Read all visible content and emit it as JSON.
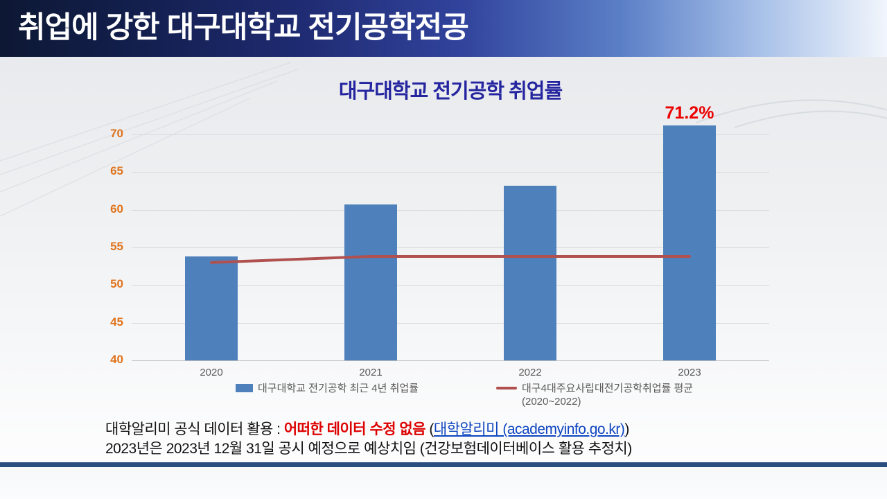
{
  "header": {
    "title": "취업에 강한 대구대학교 전기공학전공"
  },
  "chart_data": {
    "type": "bar",
    "title": "대구대학교 전기공학 취업률",
    "categories": [
      "2020",
      "2021",
      "2022",
      "2023"
    ],
    "series": [
      {
        "name": "대구대학교 전기공학 최근 4년 취업률",
        "type": "bar",
        "color": "#4e81bc",
        "values": [
          53.8,
          60.7,
          63.2,
          71.2
        ]
      },
      {
        "name": "대구4대주요사립대전기공학취업률 평균 (2020~2022)",
        "type": "line",
        "color": "#b05150",
        "values": [
          53.0,
          53.8,
          53.8,
          53.8
        ]
      }
    ],
    "ylim": [
      40,
      70
    ],
    "yticks": [
      40,
      45,
      50,
      55,
      60,
      65,
      70
    ],
    "grid": true,
    "legend_position": "bottom",
    "data_label": {
      "series": 0,
      "index": 3,
      "text": "71.2%",
      "color": "#ec0000"
    },
    "ytick_color": "#e0731c",
    "gridline_color": "#d9d9d9"
  },
  "legend": {
    "bar_label": "대구대학교 전기공학 최근 4년 취업률",
    "line_label": "대구4대주요사립대전기공학취업률 평균",
    "line_sublabel": "(2020~2022)"
  },
  "footnote": {
    "line1_prefix": "대학알리미 공식 데이터 활용 : ",
    "line1_red": "어떠한 데이터 수정 없음",
    "line1_mid": " (",
    "line1_link": "대학알리미 (academyinfo.go.kr)",
    "line1_suffix": ")",
    "line2": "2023년은 2023년 12월 31일 공시 예정으로 예상치임 (건강보험데이터베이스 활용 추정치)"
  },
  "colors": {
    "title_bar_dark": "#0d1834",
    "title_bar_light": "#f2f6fc",
    "chart_title": "#2525a0",
    "bottom_stripe": "#2a4e80",
    "footnote_link": "#0d45c0",
    "footnote_red": "#dd0000"
  }
}
